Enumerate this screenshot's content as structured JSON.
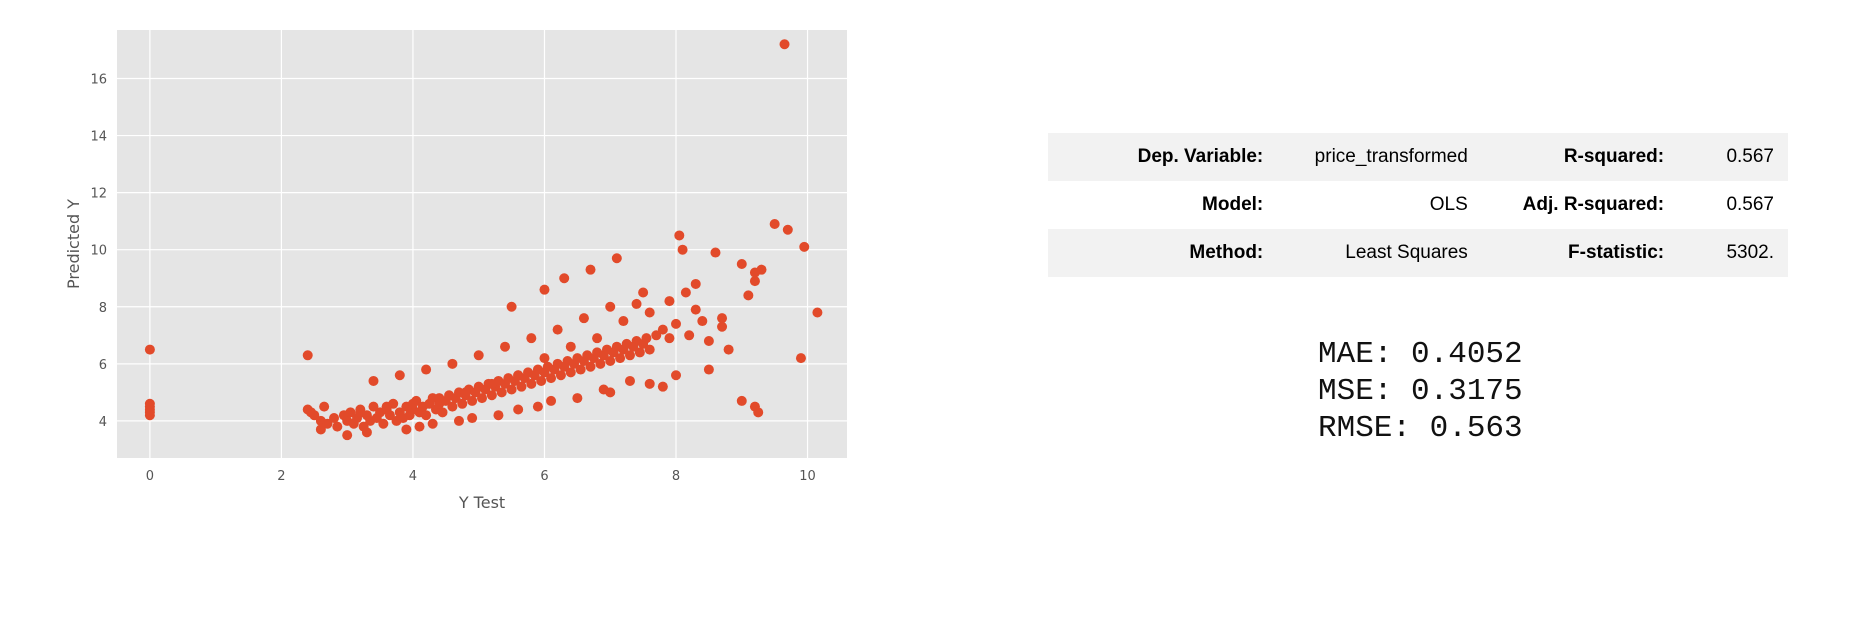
{
  "chart_data": {
    "type": "scatter",
    "title": "",
    "xlabel": "Y Test",
    "ylabel": "Predicted Y",
    "xlim": [
      -0.5,
      10.6
    ],
    "ylim": [
      2.7,
      17.7
    ],
    "xticks": [
      0,
      2,
      4,
      6,
      8,
      10
    ],
    "yticks": [
      4,
      6,
      8,
      10,
      12,
      14,
      16
    ],
    "grid": true,
    "background": "#e5e5e5",
    "point_color": "#e24a2a",
    "series": [
      {
        "x": [
          0,
          0,
          0,
          0,
          0,
          0,
          2.4,
          2.4,
          2.45,
          2.5,
          2.6,
          2.6,
          2.65,
          2.7,
          2.8,
          2.85,
          2.95,
          3.0,
          3.05,
          3.1,
          3.15,
          3.2,
          3.25,
          3.3,
          3.35,
          3.4,
          3.45,
          3.5,
          3.55,
          3.6,
          3.65,
          3.7,
          3.75,
          3.8,
          3.85,
          3.9,
          3.95,
          4.0,
          4.05,
          4.1,
          4.15,
          4.2,
          4.25,
          4.3,
          4.35,
          4.4,
          4.45,
          4.5,
          4.55,
          4.6,
          4.65,
          4.7,
          4.75,
          4.8,
          4.85,
          4.9,
          4.95,
          5.0,
          5.05,
          5.1,
          5.15,
          5.2,
          5.25,
          5.3,
          5.35,
          5.4,
          5.45,
          5.5,
          5.55,
          5.6,
          5.65,
          5.7,
          5.75,
          5.8,
          5.85,
          5.9,
          5.95,
          6.0,
          6.05,
          6.1,
          6.15,
          6.2,
          6.25,
          6.3,
          6.35,
          6.4,
          6.45,
          6.5,
          6.55,
          6.6,
          6.65,
          6.7,
          6.75,
          6.8,
          6.85,
          6.9,
          6.95,
          7.0,
          7.05,
          7.1,
          7.15,
          7.2,
          7.25,
          7.3,
          7.35,
          7.4,
          7.45,
          7.5,
          7.55,
          7.6,
          7.7,
          7.8,
          7.9,
          8.0,
          8.05,
          8.1,
          8.15,
          8.2,
          8.3,
          8.4,
          8.5,
          8.6,
          8.7,
          8.8,
          9.0,
          9.0,
          9.1,
          9.2,
          9.25,
          9.3,
          9.5,
          9.7,
          9.9,
          9.95,
          10.15,
          9.65,
          3.2,
          3.6,
          4.0,
          4.4,
          4.8,
          5.2,
          5.6,
          6.0,
          6.4,
          6.8,
          7.2,
          7.6,
          3.4,
          3.8,
          4.2,
          4.6,
          5.0,
          5.4,
          5.8,
          6.2,
          6.6,
          7.0,
          7.4,
          5.5,
          6.0,
          6.3,
          6.7,
          7.1,
          7.5,
          7.9,
          8.3,
          8.7,
          9.2,
          4.1,
          4.7,
          5.3,
          5.9,
          6.5,
          7.0,
          7.6,
          8.0,
          8.5,
          9.2,
          3.0,
          3.3,
          3.9,
          4.3,
          4.9,
          5.6,
          6.1,
          6.9,
          7.3,
          7.8
        ],
        "y": [
          6.5,
          4.5,
          4.4,
          4.3,
          4.2,
          4.6,
          6.3,
          4.4,
          4.3,
          4.2,
          4.0,
          3.7,
          4.5,
          3.9,
          4.1,
          3.8,
          4.2,
          4.0,
          4.3,
          3.9,
          4.1,
          4.4,
          3.8,
          4.2,
          4.0,
          4.5,
          4.1,
          4.3,
          3.9,
          4.4,
          4.2,
          4.6,
          4.0,
          4.3,
          4.1,
          4.5,
          4.2,
          4.4,
          4.7,
          4.3,
          4.5,
          4.2,
          4.6,
          4.8,
          4.4,
          4.6,
          4.3,
          4.7,
          4.9,
          4.5,
          4.8,
          5.0,
          4.6,
          4.9,
          5.1,
          4.7,
          5.0,
          5.2,
          4.8,
          5.1,
          5.3,
          4.9,
          5.2,
          5.4,
          5.0,
          5.3,
          5.5,
          5.1,
          5.4,
          5.6,
          5.2,
          5.5,
          5.7,
          5.3,
          5.6,
          5.8,
          5.4,
          5.7,
          5.9,
          5.5,
          5.8,
          6.0,
          5.6,
          5.9,
          6.1,
          5.7,
          6.0,
          6.2,
          5.8,
          6.1,
          6.3,
          5.9,
          6.2,
          6.4,
          6.0,
          6.3,
          6.5,
          6.1,
          6.4,
          6.6,
          6.2,
          6.5,
          6.7,
          6.3,
          6.6,
          6.8,
          6.4,
          6.7,
          6.9,
          6.5,
          7.0,
          7.2,
          6.9,
          7.4,
          10.5,
          10.0,
          8.5,
          7.0,
          8.8,
          7.5,
          6.8,
          9.9,
          7.3,
          6.5,
          4.7,
          9.5,
          8.4,
          4.5,
          4.3,
          9.3,
          10.9,
          10.7,
          6.2,
          10.1,
          7.8,
          17.2,
          4.3,
          4.5,
          4.6,
          4.8,
          5.0,
          5.3,
          5.6,
          6.2,
          6.6,
          6.9,
          7.5,
          7.8,
          5.4,
          5.6,
          5.8,
          6.0,
          6.3,
          6.6,
          6.9,
          7.2,
          7.6,
          8.0,
          8.1,
          8.0,
          8.6,
          9.0,
          9.3,
          9.7,
          8.5,
          8.2,
          7.9,
          7.6,
          9.2,
          3.8,
          4.0,
          4.2,
          4.5,
          4.8,
          5.0,
          5.3,
          5.6,
          5.8,
          8.9,
          3.5,
          3.6,
          3.7,
          3.9,
          4.1,
          4.4,
          4.7,
          5.1,
          5.4,
          5.2
        ]
      }
    ]
  },
  "ols_table": {
    "rows": [
      [
        "Dep. Variable:",
        "price_transformed",
        "R-squared:",
        "0.567"
      ],
      [
        "Model:",
        "OLS",
        "Adj. R-squared:",
        "0.567"
      ],
      [
        "Method:",
        "Least Squares",
        "F-statistic:",
        "5302."
      ]
    ]
  },
  "metrics": {
    "mae": "MAE: 0.4052",
    "mse": "MSE: 0.3175",
    "rmse": "RMSE: 0.563"
  }
}
